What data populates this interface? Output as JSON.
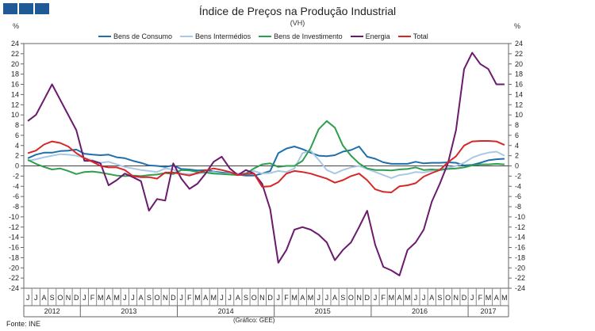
{
  "header": {
    "title": "Índice de Preços na Produção Industrial",
    "subtitle": "(VH)",
    "unit_left": "%",
    "unit_right": "%"
  },
  "footer": {
    "source": "Fonte: INE",
    "credit": "(Gráfico: GEE)"
  },
  "chart_data": {
    "type": "line",
    "title": "Índice de Preços na Produção Industrial",
    "subtitle": "(VH)",
    "ylabel": "%",
    "ylim": [
      -24,
      24
    ],
    "yticks": [
      24,
      22,
      20,
      18,
      16,
      14,
      12,
      10,
      8,
      6,
      4,
      2,
      0,
      -2,
      -4,
      -6,
      -8,
      -10,
      -12,
      -14,
      -16,
      -18,
      -20,
      -22,
      -24
    ],
    "grid": false,
    "legend_position": "top",
    "x": [
      "J",
      "J",
      "A",
      "S",
      "O",
      "N",
      "D",
      "J",
      "F",
      "M",
      "A",
      "M",
      "J",
      "J",
      "A",
      "S",
      "O",
      "N",
      "D",
      "J",
      "F",
      "M",
      "A",
      "M",
      "J",
      "J",
      "A",
      "S",
      "O",
      "N",
      "D",
      "J",
      "F",
      "M",
      "A",
      "M",
      "J",
      "J",
      "A",
      "S",
      "O",
      "N",
      "D",
      "J",
      "F",
      "M",
      "A",
      "M",
      "J",
      "J",
      "A",
      "S",
      "O",
      "N",
      "D",
      "J",
      "F",
      "M",
      "A",
      "M"
    ],
    "years": [
      {
        "label": "2012",
        "start": 0,
        "end": 6
      },
      {
        "label": "2013",
        "start": 7,
        "end": 18
      },
      {
        "label": "2014",
        "start": 19,
        "end": 30
      },
      {
        "label": "2015",
        "start": 31,
        "end": 42
      },
      {
        "label": "2016",
        "start": 43,
        "end": 54
      },
      {
        "label": "2017",
        "start": 55,
        "end": 59
      }
    ],
    "series": [
      {
        "name": "Bens de Consumo",
        "color": "#1f6fad",
        "values": [
          1.5,
          2.2,
          2.6,
          2.6,
          2.9,
          3.0,
          3.2,
          2.4,
          2.2,
          2.1,
          2.2,
          1.7,
          1.5,
          1.0,
          0.6,
          0.1,
          0.0,
          -0.2,
          0.1,
          -0.6,
          -0.7,
          -0.9,
          -0.8,
          -1.1,
          -1.3,
          -1.4,
          -1.7,
          -1.9,
          -1.9,
          -1.5,
          -1.0,
          2.5,
          3.4,
          3.8,
          3.3,
          2.6,
          2.0,
          1.9,
          2.1,
          2.8,
          3.1,
          3.8,
          1.8,
          1.4,
          0.7,
          0.4,
          0.4,
          0.4,
          0.8,
          0.5,
          0.6,
          0.6,
          0.7,
          0.6,
          0.1,
          0.2,
          0.6,
          1.1,
          1.3,
          1.4
        ]
      },
      {
        "name": "Bens Intermédios",
        "color": "#a9c8e6",
        "values": [
          1.0,
          1.3,
          1.7,
          2.0,
          2.3,
          2.2,
          2.0,
          1.6,
          1.1,
          0.6,
          0.8,
          0.3,
          -0.2,
          -0.5,
          -0.8,
          -1.0,
          -1.2,
          -0.5,
          -0.7,
          -1.5,
          -1.6,
          -1.5,
          -1.3,
          -1.2,
          -1.5,
          -1.5,
          -1.5,
          -1.4,
          -1.0,
          -1.5,
          -1.4,
          -1.0,
          -1.2,
          -0.5,
          2.5,
          3.0,
          1.2,
          -0.8,
          -1.5,
          -0.8,
          -0.3,
          0.0,
          -0.6,
          -1.2,
          -1.8,
          -2.4,
          -1.8,
          -1.6,
          -1.2,
          -1.3,
          -1.0,
          -0.6,
          -0.4,
          0.0,
          0.6,
          1.6,
          2.2,
          2.6,
          2.8,
          2.0
        ]
      },
      {
        "name": "Bens de Investimento",
        "color": "#2e9e4f",
        "values": [
          1.2,
          0.4,
          -0.2,
          -0.7,
          -0.5,
          -1.0,
          -1.6,
          -1.2,
          -1.1,
          -1.3,
          -1.6,
          -1.9,
          -2.0,
          -1.9,
          -2.0,
          -1.8,
          -1.7,
          -1.4,
          -1.6,
          -0.8,
          -0.9,
          -1.2,
          -1.3,
          -1.5,
          -1.6,
          -1.7,
          -1.8,
          -1.5,
          -0.5,
          0.3,
          0.5,
          -0.2,
          0.0,
          0.0,
          1.0,
          3.5,
          7.2,
          8.8,
          7.5,
          4.0,
          2.0,
          0.5,
          -0.5,
          -0.8,
          -0.8,
          -0.9,
          -0.7,
          -0.6,
          -0.3,
          -0.8,
          -0.7,
          -0.8,
          -0.6,
          -0.5,
          -0.3,
          0.1,
          0.3,
          0.3,
          0.4,
          0.3
        ]
      },
      {
        "name": "Energia",
        "color": "#6b1a6e",
        "values": [
          8.8,
          10.0,
          13.0,
          16.0,
          13.0,
          10.0,
          7.0,
          1.0,
          1.0,
          0.5,
          -3.8,
          -2.8,
          -1.5,
          -2.2,
          -3.0,
          -8.8,
          -6.5,
          -6.8,
          0.5,
          -2.5,
          -4.5,
          -3.5,
          -1.5,
          0.8,
          1.8,
          -0.5,
          -1.8,
          -0.8,
          -1.5,
          -3.5,
          -8.5,
          -19.0,
          -16.5,
          -12.5,
          -12.0,
          -12.5,
          -13.5,
          -15.0,
          -18.5,
          -16.5,
          -15.0,
          -12.0,
          -8.8,
          -15.5,
          -19.8,
          -20.5,
          -21.5,
          -16.5,
          -15.0,
          -12.5,
          -7.0,
          -3.5,
          0.5,
          7.0,
          19.0,
          22.2,
          20.0,
          19.0,
          16.0,
          16.0
        ]
      },
      {
        "name": "Total",
        "color": "#d62728",
        "values": [
          2.5,
          3.0,
          4.2,
          4.8,
          4.5,
          3.8,
          2.5,
          1.5,
          0.8,
          0.0,
          -0.3,
          -0.3,
          -0.8,
          -2.0,
          -2.2,
          -2.2,
          -2.5,
          -1.3,
          -1.3,
          -1.6,
          -1.9,
          -1.4,
          -0.9,
          -0.5,
          -0.8,
          -1.2,
          -1.8,
          -1.6,
          -1.5,
          -4.1,
          -4.0,
          -3.2,
          -1.5,
          -1.0,
          -1.2,
          -1.5,
          -2.0,
          -2.5,
          -3.3,
          -2.8,
          -2.0,
          -1.5,
          -2.8,
          -4.6,
          -5.1,
          -5.2,
          -4.0,
          -3.8,
          -3.4,
          -2.1,
          -1.4,
          -0.8,
          0.7,
          1.9,
          4.0,
          4.8,
          4.9,
          4.9,
          4.8,
          4.1
        ]
      }
    ]
  }
}
